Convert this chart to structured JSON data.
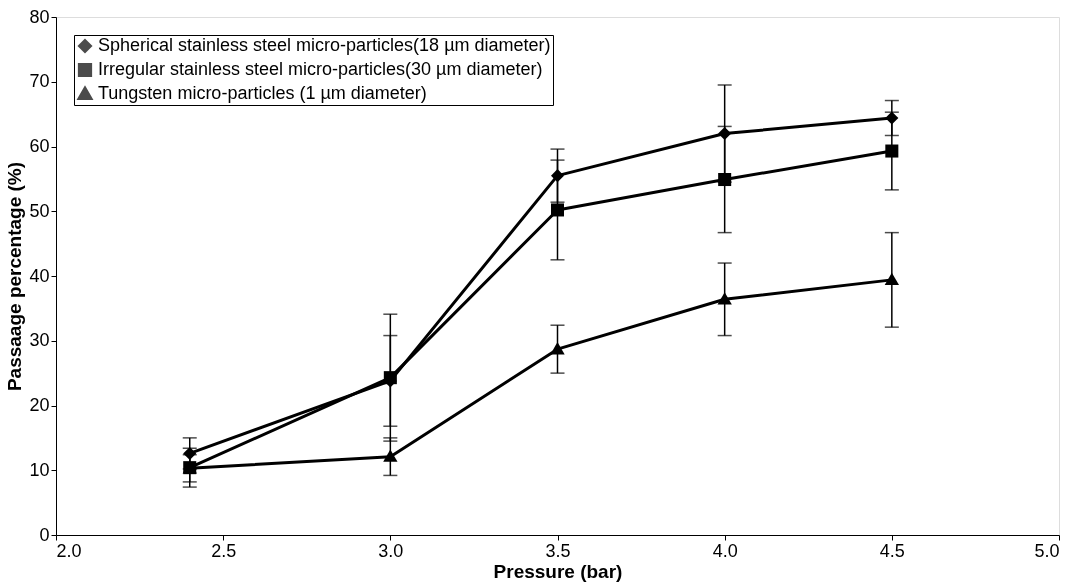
{
  "chart_data": {
    "type": "line",
    "xlabel": "Pressure (bar)",
    "ylabel": "Passaage percentage (%)",
    "x": [
      2.4,
      3.0,
      3.5,
      4.0,
      4.5
    ],
    "series": [
      {
        "name": "Spherical stainless steel micro-particles(18 µm diameter)",
        "color": "#000000",
        "marker": "diamond",
        "values": [
          12.6,
          23.8,
          55.5,
          62.0,
          64.4
        ],
        "errors": [
          2.4,
          7.0,
          4.1,
          7.5,
          2.7
        ]
      },
      {
        "name": "Irregular stainless steel micro-particles(30 µm diameter)",
        "color": "#000000",
        "marker": "square",
        "values": [
          10.4,
          24.3,
          50.2,
          54.9,
          59.3
        ],
        "errors": [
          3.0,
          9.8,
          7.7,
          8.2,
          6.0
        ]
      },
      {
        "name": "Tungsten micro-particles (1 µm diameter)",
        "color": "#000000",
        "marker": "triangle",
        "values": [
          10.3,
          12.1,
          28.7,
          36.4,
          39.4
        ],
        "errors": [
          2.1,
          2.9,
          3.7,
          5.6,
          7.3
        ]
      }
    ],
    "xlim": [
      2.0,
      5.0
    ],
    "xticks": [
      {
        "value": 2.0,
        "label": "2.0"
      },
      {
        "value": 2.5,
        "label": "2.5"
      },
      {
        "value": 3.0,
        "label": "3.0"
      },
      {
        "value": 3.5,
        "label": "3.5"
      },
      {
        "value": 4.0,
        "label": "4.0"
      },
      {
        "value": 4.5,
        "label": "4.5"
      },
      {
        "value": 5.0,
        "label": "5.0"
      }
    ],
    "ylim": [
      0,
      80
    ],
    "yticks": [
      0,
      10,
      20,
      30,
      40,
      50,
      60,
      70,
      80
    ],
    "grid": false,
    "legend": "top left",
    "line_style": "solid"
  }
}
